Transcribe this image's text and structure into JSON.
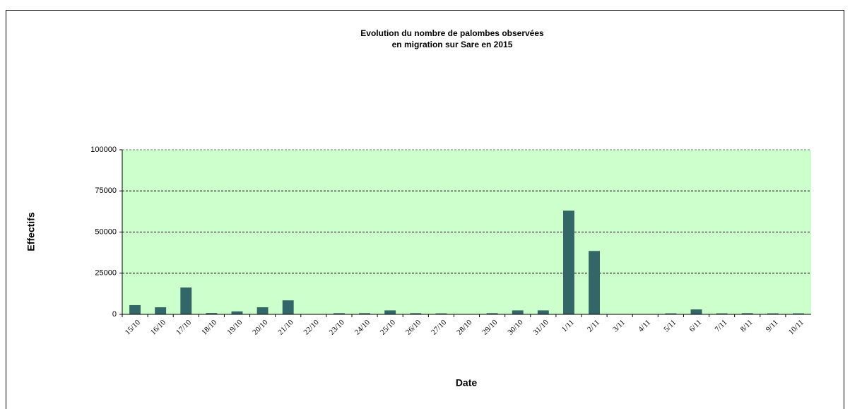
{
  "chart_data": {
    "type": "bar",
    "title": [
      "Evolution du nombre de palombes observées",
      "en migration sur Sare en 2015"
    ],
    "x_label": "Date",
    "y_label": "Effectifs",
    "categories": [
      "15/10",
      "16/10",
      "17/10",
      "18/10",
      "19/10",
      "20/10",
      "21/10",
      "22/10",
      "23/10",
      "24/10",
      "25/10",
      "26/10",
      "27/10",
      "28/10",
      "29/10",
      "30/10",
      "31/10",
      "1/11",
      "2/11",
      "3/11",
      "4/11",
      "5/11",
      "6/11",
      "7/11",
      "8/11",
      "9/11",
      "10/11"
    ],
    "values": [
      5600,
      4300,
      16300,
      800,
      1800,
      4300,
      8500,
      0,
      700,
      700,
      2400,
      700,
      600,
      0,
      700,
      2400,
      2400,
      63000,
      38500,
      0,
      0,
      600,
      3000,
      600,
      700,
      600,
      600
    ],
    "color": "#336666",
    "background": "#ccffcc",
    "ylim": [
      0,
      100000
    ],
    "yticks": [
      0,
      25000,
      50000,
      75000,
      100000
    ],
    "grid": true
  }
}
